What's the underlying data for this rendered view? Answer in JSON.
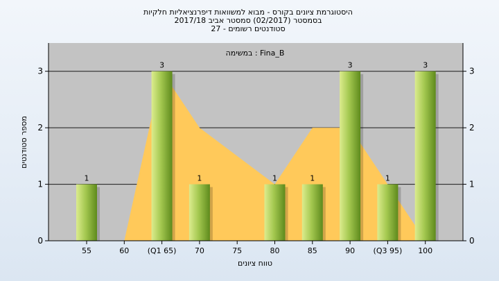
{
  "chart_data": {
    "type": "bar",
    "title_lines": [
      "היסטוגרמת ציונים בקורס - מבוא למשוואות דיפרנציאליות חלקיות",
      "בסמסטר  (02/2017)  סמסטר אביב 2017/18",
      "סטודנטים רשומים - 27"
    ],
    "legend": "במשימה : Fina_B",
    "xlabel": "טווח ציונים",
    "ylabel": "מספר סטודנטים",
    "categories": [
      "55",
      "60",
      "(Q1 65)",
      "70",
      "75",
      "80",
      "85",
      "90",
      "(Q3 95)",
      "100"
    ],
    "values": [
      1,
      0,
      3,
      1,
      0,
      1,
      1,
      3,
      1,
      3
    ],
    "data_labels": [
      "1",
      "",
      "3",
      "1",
      "",
      "1",
      "1",
      "3",
      "1",
      "3"
    ],
    "area_values": [
      0,
      0,
      3,
      2,
      1.5,
      1,
      2,
      2,
      1,
      0
    ],
    "yticks": [
      0,
      1,
      2,
      3
    ],
    "ylim": [
      0,
      3.5
    ],
    "colors": {
      "plot_bg": "#c3c3c3",
      "area": "#ffc95a",
      "bar_light": "#dcec8e",
      "bar_mid": "#a4c850",
      "bar_dark": "#5e8a1c",
      "grid": "#1a1a1a"
    }
  }
}
